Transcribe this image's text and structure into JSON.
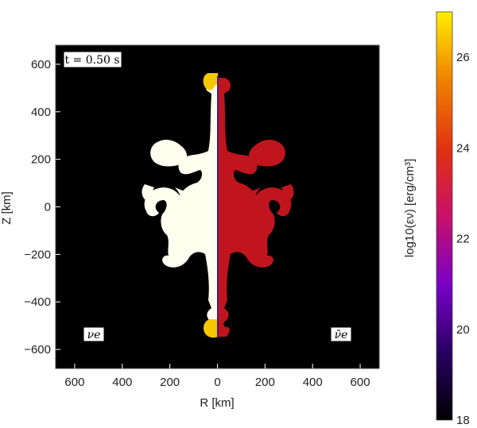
{
  "chart_data": {
    "type": "heatmap",
    "time_label": "t = 0.50 s",
    "xlabel": "R [km]",
    "ylabel": "Z [km]",
    "x_ticks": [
      "600",
      "400",
      "200",
      "0",
      "200",
      "400",
      "600"
    ],
    "y_ticks": [
      "600",
      "400",
      "200",
      "0",
      "−200",
      "−400",
      "−600"
    ],
    "xlim": [
      -680,
      680
    ],
    "ylim": [
      -680,
      680
    ],
    "left_panel_label": "νe",
    "right_panel_label": "ν̄e",
    "colorbar": {
      "label": "log10(εν) [erg/cm³]",
      "range": [
        18,
        27
      ],
      "ticks": [
        "18",
        "20",
        "22",
        "24",
        "26"
      ],
      "colormap": [
        "#000000",
        "#2a0066",
        "#7a00c8",
        "#c8106a",
        "#e03010",
        "#f08000",
        "#ffee00"
      ]
    },
    "colors": {
      "background": "#000000",
      "neutrino_fill": "#fffff0",
      "antineutrino_fill": "#c0151c",
      "hot_tip": "#f7c800"
    }
  }
}
